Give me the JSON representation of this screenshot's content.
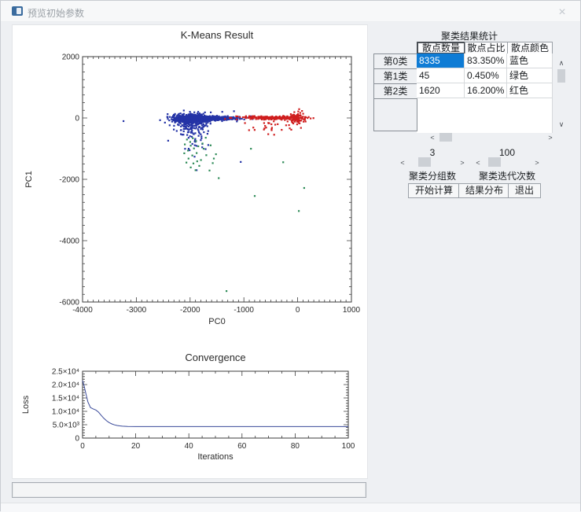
{
  "window": {
    "title": "预览初始参数",
    "controls": {
      "close": "×"
    }
  },
  "glyphs": {
    "up": "∧",
    "down": "∨",
    "left": "<",
    "right": ">"
  },
  "right_panel": {
    "table": {
      "title": "聚类结果统计",
      "columns": [
        "散点数量",
        "散点占比",
        "散点颜色"
      ],
      "rows": [
        {
          "name": "第0类",
          "count": "8335",
          "percent": "83.350%",
          "color_label": "蓝色",
          "selected": true
        },
        {
          "name": "第1类",
          "count": "45",
          "percent": "0.450%",
          "color_label": "绿色",
          "selected": false
        },
        {
          "name": "第2类",
          "count": "1620",
          "percent": "16.200%",
          "color_label": "红色",
          "selected": false
        }
      ]
    },
    "group_slider": {
      "value": "3",
      "label": "聚类分组数"
    },
    "iter_slider": {
      "value": "100",
      "label": "聚类迭代次数"
    },
    "buttons": {
      "start": "开始计算",
      "distribution": "结果分布",
      "exit": "退出"
    }
  },
  "colors": {
    "selection_blue": "#0f7cd5",
    "cluster_blue": "#2433a6",
    "cluster_green": "#2e8b57",
    "cluster_red": "#cf1d1d",
    "axis": "#3c3c3c",
    "conv_line": "#3a4a9a"
  },
  "chart_data": [
    {
      "type": "scatter",
      "title": "K-Means Result",
      "xlabel": "PC0",
      "ylabel": "PC1",
      "xlim": [
        -4000,
        1000
      ],
      "ylim": [
        -6000,
        2000
      ],
      "xticks": [
        -4000,
        -3000,
        -2000,
        -1000,
        0,
        1000
      ],
      "yticks": [
        2000,
        0,
        -2000,
        -4000,
        -6000
      ],
      "x_minor_step": 100,
      "y_minor_step": 250,
      "clusters": [
        {
          "name": "第0类",
          "color": "#2433a6",
          "count": 8335,
          "blobs": [
            {
              "n": 850,
              "cx": -1950,
              "cy": -20,
              "sx": 165,
              "sy": 55
            },
            {
              "n": 240,
              "cx": -1480,
              "cy": -10,
              "sx": 230,
              "sy": 32
            },
            {
              "n": 150,
              "cx": -1980,
              "cy": -230,
              "sx": 130,
              "sy": 160
            },
            {
              "n": 40,
              "cx": -1900,
              "cy": -650,
              "sx": 180,
              "sy": 300
            },
            {
              "n": 14,
              "cx": -1750,
              "cy": 160,
              "sx": 210,
              "sy": 80
            }
          ],
          "outliers": [
            [
              -3240,
              -100
            ],
            [
              -2560,
              -70
            ],
            [
              -2470,
              -150
            ],
            [
              -1060,
              -1430
            ],
            [
              -1880,
              -1700
            ],
            [
              -2250,
              -420
            ],
            [
              -2300,
              -250
            ]
          ]
        },
        {
          "name": "第2类",
          "color": "#cf1d1d",
          "count": 1620,
          "blobs": [
            {
              "n": 240,
              "cx": -480,
              "cy": 10,
              "sx": 300,
              "sy": 28
            },
            {
              "n": 85,
              "cx": -20,
              "cy": 0,
              "sx": 55,
              "sy": 90
            },
            {
              "n": 26,
              "cx": -550,
              "cy": -250,
              "sx": 280,
              "sy": 110
            }
          ],
          "outliers": [
            [
              80,
              230
            ],
            [
              60,
              -320
            ],
            [
              -120,
              -380
            ],
            [
              150,
              30
            ],
            [
              130,
              -60
            ]
          ]
        },
        {
          "name": "第1类",
          "color": "#2e8b57",
          "count": 45,
          "points": [
            [
              -2060,
              -700
            ],
            [
              -2000,
              -780
            ],
            [
              -1950,
              -660
            ],
            [
              -1890,
              -750
            ],
            [
              -1990,
              -900
            ],
            [
              -1930,
              -990
            ],
            [
              -2040,
              -1060
            ],
            [
              -1880,
              -1140
            ],
            [
              -1960,
              -1220
            ],
            [
              -2030,
              -1320
            ],
            [
              -1870,
              -1410
            ],
            [
              -1940,
              -1480
            ],
            [
              -1800,
              -1370
            ],
            [
              -1990,
              -1610
            ],
            [
              -1900,
              -1700
            ],
            [
              -1830,
              -1560
            ],
            [
              -2070,
              -1450
            ],
            [
              -1750,
              -1000
            ],
            [
              -1700,
              -1210
            ],
            [
              -1640,
              -1710
            ],
            [
              -1580,
              -1470
            ],
            [
              -1520,
              -1180
            ],
            [
              -2100,
              -860
            ],
            [
              -1470,
              -1960
            ],
            [
              -1770,
              -830
            ],
            [
              -1710,
              -640
            ],
            [
              -2110,
              -1150
            ],
            [
              -1850,
              -920
            ],
            [
              -1620,
              -890
            ],
            [
              -1560,
              -1320
            ],
            [
              -870,
              -1000
            ],
            [
              -1325,
              -5640
            ],
            [
              -800,
              -2540
            ],
            [
              120,
              -2280
            ],
            [
              20,
              -3030
            ],
            [
              -270,
              -1440
            ]
          ]
        }
      ]
    },
    {
      "type": "line",
      "title": "Convergence",
      "xlabel": "Iterations",
      "ylabel": "Loss",
      "xlim": [
        0,
        100
      ],
      "ylim": [
        0,
        25000
      ],
      "xticks": [
        0,
        20,
        40,
        60,
        80,
        100
      ],
      "yticks": [
        0,
        5000,
        10000,
        15000,
        20000,
        25000
      ],
      "ytick_labels": [
        "0",
        "5.0×10³",
        "1.0×10⁴",
        "1.5×10⁴",
        "2.0×10⁴",
        "2.5×10⁴"
      ],
      "x_minor_step": 5,
      "y_minor_step": 1000,
      "color": "#3a4a9a",
      "points": [
        [
          0,
          21500
        ],
        [
          0.6,
          19500
        ],
        [
          1.2,
          16800
        ],
        [
          2,
          13500
        ],
        [
          3,
          11400
        ],
        [
          4,
          10900
        ],
        [
          5,
          10500
        ],
        [
          6,
          9700
        ],
        [
          7,
          8500
        ],
        [
          8,
          7400
        ],
        [
          9,
          6500
        ],
        [
          10,
          5800
        ],
        [
          11,
          5300
        ],
        [
          12,
          4950
        ],
        [
          13,
          4700
        ],
        [
          14,
          4550
        ],
        [
          15,
          4450
        ],
        [
          17,
          4360
        ],
        [
          20,
          4300
        ],
        [
          25,
          4280
        ],
        [
          100,
          4280
        ]
      ]
    }
  ]
}
